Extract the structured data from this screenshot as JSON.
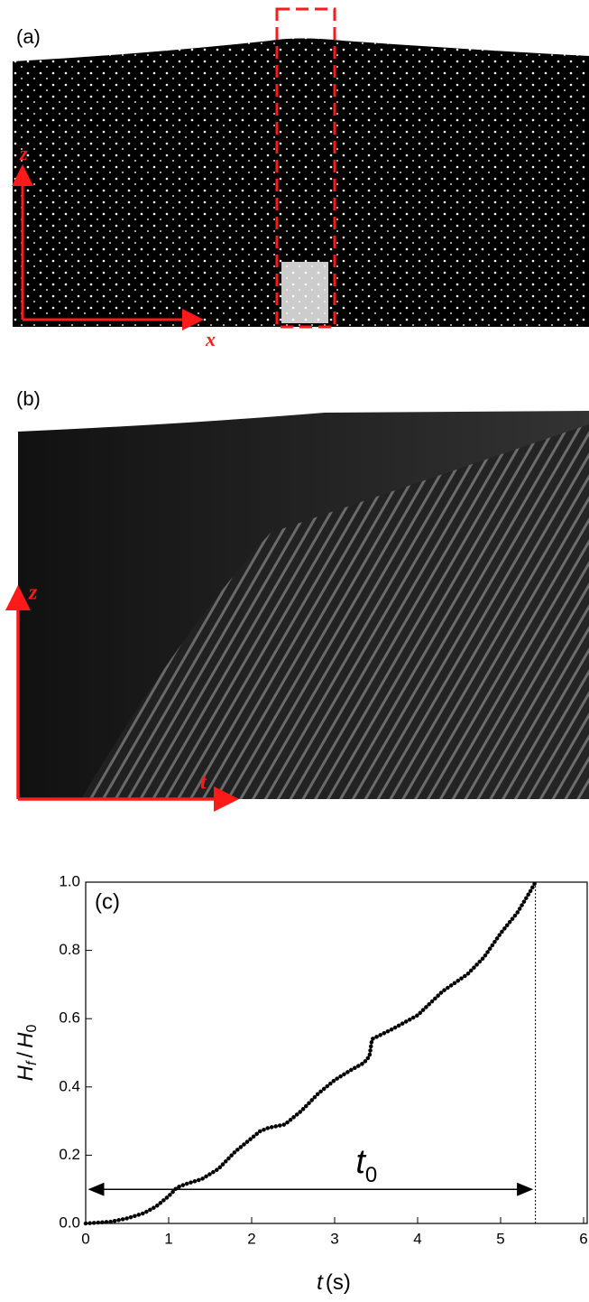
{
  "panels": [
    {
      "label": "(a)",
      "vertical_axis": "z",
      "horizontal_axis": "x"
    },
    {
      "label": "(b)",
      "vertical_axis": "z",
      "horizontal_axis": "t"
    }
  ],
  "chart_data": {
    "type": "line",
    "panel_label": "(c)",
    "color": "#000000",
    "x": [
      0,
      0.3,
      0.5,
      0.7,
      0.85,
      1.0,
      1.1,
      1.2,
      1.4,
      1.6,
      1.8,
      2.0,
      2.1,
      2.2,
      2.4,
      2.6,
      2.8,
      3.0,
      3.2,
      3.35,
      3.42,
      3.45,
      3.7,
      4.0,
      4.3,
      4.6,
      4.8,
      5.0,
      5.2,
      5.35,
      5.42
    ],
    "values": [
      0,
      0.005,
      0.015,
      0.03,
      0.05,
      0.08,
      0.105,
      0.115,
      0.13,
      0.16,
      0.21,
      0.25,
      0.27,
      0.28,
      0.29,
      0.33,
      0.38,
      0.42,
      0.45,
      0.47,
      0.49,
      0.54,
      0.57,
      0.61,
      0.68,
      0.73,
      0.78,
      0.85,
      0.91,
      0.97,
      1.0
    ],
    "xlim": [
      0,
      6
    ],
    "xticks": [
      0,
      1,
      2,
      3,
      4,
      5,
      6
    ],
    "ylim": [
      0,
      1
    ],
    "yticks": [
      {
        "value": 0,
        "label": "0.0"
      },
      0.2,
      0.4,
      0.6,
      0.8,
      {
        "value": 1,
        "label": "1.0"
      }
    ],
    "xlabel": {
      "symbol": "t",
      "unit": "(s)"
    },
    "ylabel": {
      "numerator": "H",
      "numerator_sub": "f",
      "slash": "/",
      "denominator": "H",
      "denominator_sub": "0"
    },
    "annotation": {
      "symbol": "t",
      "subscript": "0",
      "x": [
        0,
        5.42
      ],
      "y": 0.1
    },
    "vline": 5.42
  }
}
